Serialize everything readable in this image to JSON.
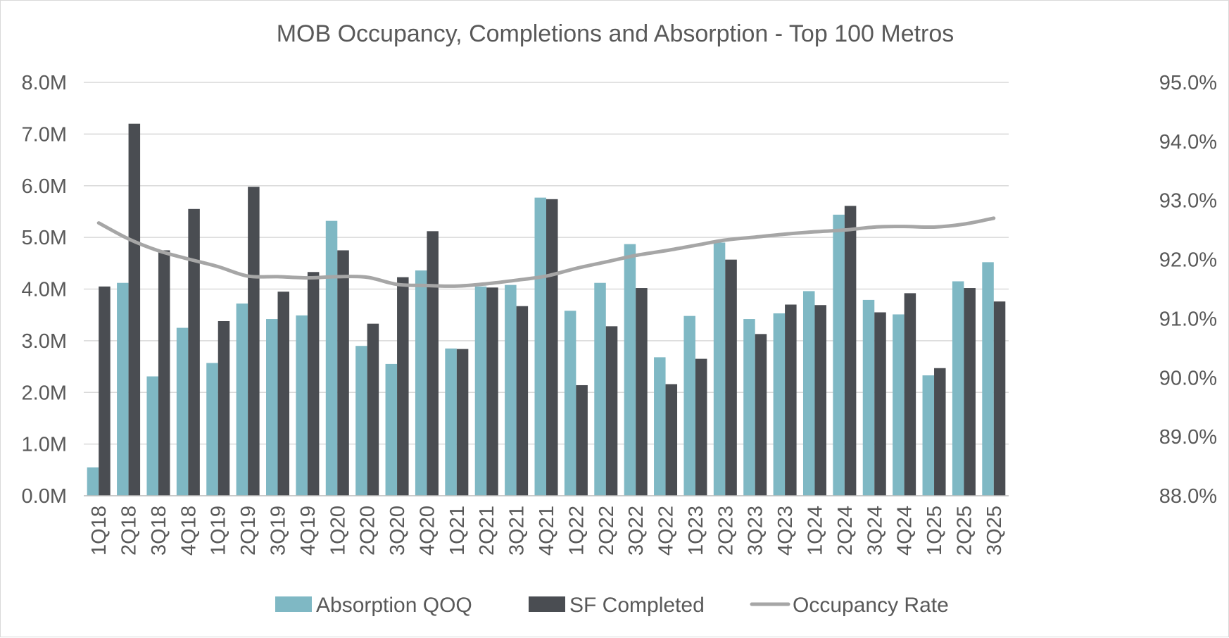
{
  "chart_data": {
    "type": "bar",
    "title": "MOB Occupancy, Completions and Absorption - Top 100 Metros",
    "categories": [
      "1Q18",
      "2Q18",
      "3Q18",
      "4Q18",
      "1Q19",
      "2Q19",
      "3Q19",
      "4Q19",
      "1Q20",
      "2Q20",
      "3Q20",
      "4Q20",
      "1Q21",
      "2Q21",
      "3Q21",
      "4Q21",
      "1Q22",
      "2Q22",
      "3Q22",
      "4Q22",
      "1Q23",
      "2Q23",
      "3Q23",
      "4Q23",
      "1Q24",
      "2Q24",
      "3Q24",
      "4Q24",
      "1Q25",
      "2Q25",
      "3Q25"
    ],
    "series": [
      {
        "name": "Absorption QOQ",
        "type": "bar",
        "axis": "left",
        "color": "#7fb8c4",
        "values": [
          0.55,
          4.12,
          2.31,
          3.25,
          2.57,
          3.72,
          3.42,
          3.49,
          5.32,
          2.9,
          2.55,
          4.36,
          2.85,
          4.05,
          4.08,
          5.77,
          3.58,
          4.12,
          4.87,
          2.68,
          3.48,
          4.9,
          3.42,
          3.53,
          3.96,
          5.44,
          3.79,
          3.51,
          2.33,
          4.15,
          4.52
        ]
      },
      {
        "name": "SF Completed",
        "type": "bar",
        "axis": "left",
        "color": "#4a4d52",
        "values": [
          4.05,
          7.2,
          4.75,
          5.55,
          3.38,
          5.98,
          3.95,
          4.33,
          4.75,
          3.33,
          4.23,
          5.12,
          2.84,
          4.03,
          3.67,
          5.74,
          2.14,
          3.28,
          4.02,
          2.16,
          2.65,
          4.57,
          3.13,
          3.7,
          3.69,
          5.61,
          3.55,
          3.92,
          2.47,
          4.02,
          3.76
        ]
      },
      {
        "name": "Occupancy Rate",
        "type": "line",
        "axis": "right",
        "color": "#a6a6a6",
        "values": [
          92.62,
          92.35,
          92.15,
          92.01,
          91.88,
          91.72,
          91.71,
          91.69,
          91.71,
          91.7,
          91.58,
          91.56,
          91.55,
          91.59,
          91.65,
          91.72,
          91.85,
          91.96,
          92.07,
          92.15,
          92.24,
          92.33,
          92.38,
          92.43,
          92.47,
          92.5,
          92.55,
          92.56,
          92.55,
          92.6,
          92.7
        ]
      }
    ],
    "y_left": {
      "min": 0,
      "max": 8,
      "ticks": [
        0,
        1,
        2,
        3,
        4,
        5,
        6,
        7,
        8
      ],
      "tick_labels": [
        "0.0M",
        "1.0M",
        "2.0M",
        "3.0M",
        "4.0M",
        "5.0M",
        "6.0M",
        "7.0M",
        "8.0M"
      ]
    },
    "y_right": {
      "min": 88,
      "max": 95,
      "ticks": [
        88,
        89,
        90,
        91,
        92,
        93,
        94,
        95
      ],
      "tick_labels": [
        "88.0%",
        "89.0%",
        "90.0%",
        "91.0%",
        "92.0%",
        "93.0%",
        "94.0%",
        "95.0%"
      ]
    },
    "grid": true,
    "legend_position": "bottom"
  }
}
